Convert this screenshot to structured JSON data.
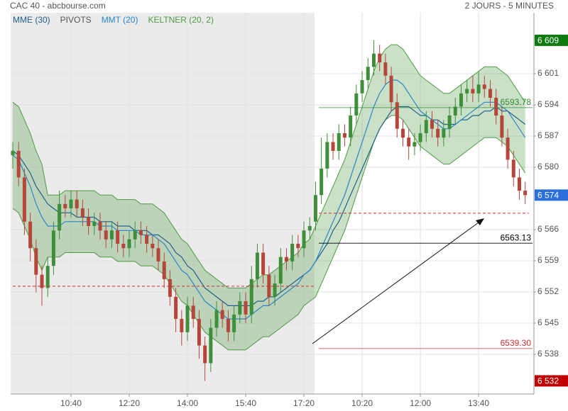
{
  "chart_data": {
    "type": "candlestick",
    "title": "CAC 40 - abcbourse.com",
    "subtitle": "2 JOURS - 5 MINUTES",
    "grid": true,
    "up_color": "#3f8f3a",
    "down_color": "#b5473a",
    "xlim": [
      -0.366,
      89.5
    ],
    "ylim": [
      6529.03,
      6615.23
    ],
    "xticks": [
      {
        "value": 10,
        "label": "10:40"
      },
      {
        "value": 20,
        "label": "12:20"
      },
      {
        "value": 30,
        "label": "14:00"
      },
      {
        "value": 40,
        "label": "15:40"
      },
      {
        "value": 50,
        "label": "17:20"
      },
      {
        "value": 60,
        "label": "10:20"
      },
      {
        "value": 70,
        "label": "12:00"
      },
      {
        "value": 80,
        "label": "13:40"
      }
    ],
    "yticks": [
      {
        "value": 6538,
        "label": "6 538"
      },
      {
        "value": 6545.05,
        "label": "6 545"
      },
      {
        "value": 6552.1,
        "label": "6 552"
      },
      {
        "value": 6559.15,
        "label": "6 559"
      },
      {
        "value": 6566.2,
        "label": "6 566"
      },
      {
        "value": 6580.3,
        "label": "6 580"
      },
      {
        "value": 6587.35,
        "label": "6 587"
      },
      {
        "value": 6594.4,
        "label": "6 594"
      },
      {
        "value": 6601.45,
        "label": "6 601"
      }
    ],
    "price_markers": [
      {
        "value": 6609,
        "label": "6 609",
        "color": "#0f7a0f"
      },
      {
        "value": 6574,
        "label": "6 574",
        "color": "#2a6fdb"
      },
      {
        "value": 6532,
        "label": "6 532",
        "color": "#c00000"
      }
    ],
    "reference_lines": [
      {
        "value": 6553.4,
        "color": "#d03030"
      },
      {
        "value": 6569.9,
        "color": "#d03030"
      }
    ],
    "x": [
      0,
      1,
      2,
      3,
      4,
      5,
      6,
      7,
      8,
      9,
      10,
      11,
      12,
      13,
      14,
      15,
      16,
      17,
      18,
      19,
      20,
      21,
      22,
      23,
      24,
      25,
      26,
      27,
      28,
      29,
      30,
      31,
      32,
      33,
      34,
      35,
      36,
      37,
      38,
      39,
      40,
      41,
      42,
      43,
      44,
      45,
      46,
      47,
      48,
      49,
      50,
      51,
      52,
      53,
      54,
      55,
      56,
      57,
      58,
      59,
      60,
      61,
      62,
      63,
      64,
      65,
      66,
      67,
      68,
      69,
      70,
      71,
      72,
      73,
      74,
      75,
      76,
      77,
      78,
      79,
      80,
      81,
      82,
      83,
      84,
      85,
      86,
      87,
      88
    ],
    "open": [
      6583,
      6584,
      6578,
      6568,
      6562,
      6556,
      6553,
      6558,
      6566,
      6572,
      6571,
      6573,
      6571,
      6569,
      6567,
      6568,
      6566,
      6564,
      6566,
      6563,
      6562,
      6564,
      6566,
      6565,
      6563,
      6562,
      6559,
      6555,
      6551,
      6546,
      6543,
      6549,
      6546,
      6540,
      6536,
      6544,
      6548,
      6546,
      6543,
      6547,
      6550,
      6547,
      6555,
      6561,
      6556,
      6551,
      6554,
      6560,
      6559,
      6563,
      6562,
      6566,
      6568,
      6574,
      6580,
      6586,
      6584,
      6588,
      6587,
      6592,
      6597,
      6600,
      6603,
      6606,
      6604,
      6601,
      6595,
      6589,
      6587,
      6585,
      6586,
      6588,
      6591,
      6589,
      6587,
      6589,
      6592,
      6594,
      6597,
      6598,
      6597,
      6599,
      6598,
      6596,
      6592,
      6587,
      6582,
      6578,
      6575
    ],
    "high": [
      6586,
      6586,
      6580,
      6570,
      6564,
      6558,
      6560,
      6568,
      6575,
      6574,
      6575,
      6575,
      6573,
      6571,
      6570,
      6570,
      6568,
      6568,
      6568,
      6565,
      6566,
      6568,
      6568,
      6567,
      6565,
      6564,
      6561,
      6557,
      6553,
      6548,
      6551,
      6551,
      6548,
      6542,
      6546,
      6550,
      6550,
      6548,
      6549,
      6552,
      6552,
      6558,
      6563,
      6563,
      6558,
      6556,
      6562,
      6562,
      6565,
      6565,
      6568,
      6569,
      6577,
      6587,
      6588,
      6588,
      6590,
      6590,
      6594,
      6599,
      6602,
      6605,
      6609,
      6608,
      6606,
      6603,
      6597,
      6591,
      6589,
      6588,
      6590,
      6593,
      6593,
      6591,
      6591,
      6594,
      6596,
      6599,
      6600,
      6601,
      6602,
      6601,
      6600,
      6598,
      6594,
      6589,
      6584,
      6580,
      6577
    ],
    "low": [
      6580,
      6576,
      6565,
      6559,
      6552,
      6549,
      6551,
      6556,
      6564,
      6569,
      6569,
      6569,
      6567,
      6565,
      6565,
      6564,
      6562,
      6562,
      6561,
      6560,
      6560,
      6562,
      6563,
      6561,
      6560,
      6557,
      6553,
      6549,
      6543,
      6540,
      6541,
      6544,
      6537,
      6532,
      6534,
      6542,
      6544,
      6541,
      6541,
      6545,
      6545,
      6545,
      6553,
      6554,
      6549,
      6549,
      6552,
      6557,
      6557,
      6560,
      6560,
      6564,
      6566,
      6572,
      6578,
      6582,
      6582,
      6585,
      6585,
      6590,
      6595,
      6598,
      6601,
      6602,
      6599,
      6593,
      6587,
      6585,
      6582,
      6583,
      6584,
      6586,
      6587,
      6585,
      6585,
      6587,
      6590,
      6592,
      6595,
      6595,
      6595,
      6596,
      6594,
      6590,
      6585,
      6580,
      6576,
      6573,
      6572
    ],
    "close": [
      6584,
      6578,
      6568,
      6562,
      6556,
      6553,
      6558,
      6566,
      6572,
      6571,
      6573,
      6571,
      6569,
      6567,
      6568,
      6566,
      6564,
      6566,
      6563,
      6562,
      6564,
      6566,
      6565,
      6563,
      6562,
      6559,
      6555,
      6551,
      6546,
      6543,
      6549,
      6546,
      6540,
      6536,
      6544,
      6548,
      6546,
      6543,
      6547,
      6550,
      6547,
      6555,
      6561,
      6556,
      6551,
      6554,
      6560,
      6559,
      6563,
      6562,
      6566,
      6567,
      6574,
      6580,
      6586,
      6584,
      6588,
      6587,
      6592,
      6597,
      6600,
      6603,
      6606,
      6604,
      6601,
      6595,
      6589,
      6587,
      6585,
      6586,
      6588,
      6591,
      6589,
      6587,
      6589,
      6592,
      6594,
      6597,
      6598,
      6597,
      6599,
      6598,
      6596,
      6592,
      6587,
      6582,
      6578,
      6575,
      6574
    ],
    "series": [
      {
        "name": "MME (30)",
        "color": "#1f5f8b",
        "values": [
          6584,
          6583,
          6581,
          6579,
          6576,
          6574,
          6572,
          6571,
          6570,
          6570,
          6570,
          6569,
          6569,
          6569,
          6569,
          6568,
          6568,
          6568,
          6567,
          6567,
          6567,
          6566,
          6566,
          6566,
          6565,
          6565,
          6564,
          6563,
          6561,
          6560,
          6558,
          6557,
          6555,
          6553,
          6552,
          6551,
          6550,
          6549,
          6549,
          6549,
          6549,
          6549,
          6550,
          6550,
          6551,
          6551,
          6552,
          6553,
          6554,
          6555,
          6556,
          6557,
          6559,
          6561,
          6563,
          6566,
          6568,
          6571,
          6574,
          6577,
          6580,
          6583,
          6586,
          6589,
          6591,
          6593,
          6594,
          6594,
          6594,
          6593,
          6592,
          6592,
          6591,
          6591,
          6590,
          6590,
          6590,
          6591,
          6591,
          6592,
          6592,
          6593,
          6593,
          6594,
          6593,
          6593,
          6592,
          6591,
          6590
        ]
      },
      {
        "name": "PIVOTS",
        "color": "#555555",
        "levels": [
          {
            "value": 6593.78,
            "label": "6593.78",
            "color": "#2e8b2e"
          },
          {
            "value": 6563.13,
            "label": "6563.13",
            "color": "#000000"
          },
          {
            "value": 6539.3,
            "label": "6539.30",
            "color": "#d03030"
          }
        ]
      },
      {
        "name": "MMT (20)",
        "color": "#2a86c8",
        "values": [
          6583,
          6582,
          6579,
          6576,
          6572,
          6569,
          6567,
          6567,
          6567,
          6568,
          6568,
          6568,
          6568,
          6568,
          6568,
          6567,
          6567,
          6567,
          6566,
          6566,
          6566,
          6566,
          6565,
          6565,
          6565,
          6564,
          6563,
          6561,
          6559,
          6557,
          6556,
          6554,
          6552,
          6550,
          6549,
          6548,
          6547,
          6546,
          6546,
          6546,
          6546,
          6547,
          6548,
          6549,
          6549,
          6550,
          6551,
          6552,
          6553,
          6554,
          6556,
          6557,
          6559,
          6562,
          6565,
          6568,
          6571,
          6574,
          6578,
          6582,
          6586,
          6590,
          6594,
          6597,
          6599,
          6600,
          6600,
          6599,
          6597,
          6595,
          6593,
          6592,
          6591,
          6590,
          6589,
          6589,
          6590,
          6591,
          6592,
          6593,
          6594,
          6595,
          6595,
          6595,
          6594,
          6593,
          6591,
          6589,
          6587
        ]
      },
      {
        "name": "KELTNER (20, 2)",
        "color": "#4f9a45",
        "upper": [
          6595,
          6594,
          6591,
          6588,
          6584,
          6581,
          6574,
          6574,
          6574,
          6575,
          6575,
          6575,
          6575,
          6575,
          6575,
          6574,
          6574,
          6574,
          6573,
          6573,
          6573,
          6573,
          6572,
          6572,
          6572,
          6571,
          6570,
          6568,
          6566,
          6564,
          6563,
          6561,
          6559,
          6557,
          6556,
          6555,
          6554,
          6553,
          6553,
          6553,
          6553,
          6554,
          6555,
          6556,
          6556,
          6557,
          6558,
          6559,
          6560,
          6561,
          6563,
          6564,
          6567,
          6570,
          6573,
          6576,
          6579,
          6582,
          6586,
          6590,
          6594,
          6598,
          6602,
          6605,
          6607,
          6608,
          6608,
          6607,
          6605,
          6603,
          6601,
          6600,
          6599,
          6598,
          6597,
          6597,
          6598,
          6599,
          6600,
          6601,
          6602,
          6603,
          6603,
          6603,
          6602,
          6601,
          6599,
          6597,
          6595
        ],
        "lower": [
          6571,
          6570,
          6567,
          6564,
          6560,
          6557,
          6560,
          6560,
          6560,
          6561,
          6561,
          6561,
          6561,
          6561,
          6561,
          6560,
          6560,
          6560,
          6559,
          6559,
          6559,
          6559,
          6558,
          6558,
          6558,
          6557,
          6556,
          6554,
          6552,
          6550,
          6549,
          6547,
          6545,
          6543,
          6542,
          6541,
          6540,
          6539,
          6539,
          6539,
          6539,
          6540,
          6541,
          6542,
          6542,
          6543,
          6544,
          6545,
          6546,
          6547,
          6549,
          6550,
          6551,
          6554,
          6557,
          6560,
          6563,
          6566,
          6570,
          6574,
          6578,
          6582,
          6586,
          6589,
          6591,
          6592,
          6592,
          6591,
          6589,
          6587,
          6585,
          6584,
          6583,
          6582,
          6581,
          6581,
          6582,
          6583,
          6584,
          6585,
          6586,
          6587,
          6587,
          6587,
          6586,
          6585,
          6583,
          6581,
          6579
        ]
      }
    ]
  }
}
